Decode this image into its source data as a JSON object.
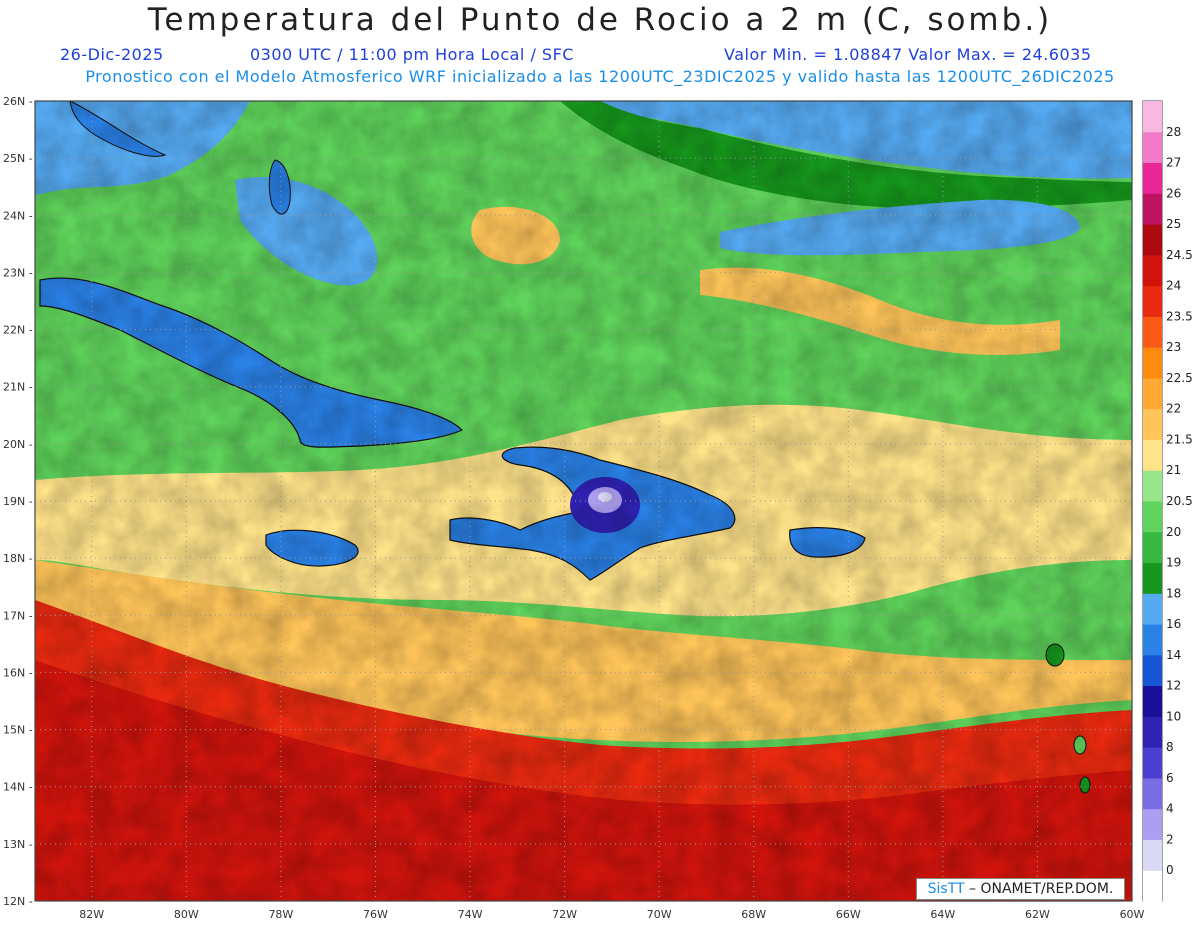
{
  "header": {
    "title": "Temperatura del Punto de Rocio a 2 m (C, somb.)",
    "date": "26-Dic-2025",
    "time": "0300 UTC / 11:00 pm Hora Local / SFC",
    "minmax": "Valor Min. = 1.08847  Valor Max. = 24.6035",
    "model": "Pronostico con el Modelo Atmosferico WRF inicializado a las 1200UTC_23DIC2025 y valido hasta las  1200UTC_26DIC2025"
  },
  "map": {
    "lat_labels": [
      "26N",
      "25N",
      "24N",
      "23N",
      "22N",
      "21N",
      "20N",
      "19N",
      "18N",
      "17N",
      "16N",
      "15N",
      "14N",
      "13N",
      "12N"
    ],
    "lon_labels": [
      "82W",
      "80W",
      "78W",
      "76W",
      "74W",
      "72W",
      "70W",
      "68W",
      "66W",
      "64W",
      "62W",
      "60W"
    ],
    "lat_range": [
      12,
      26
    ],
    "lon_range": [
      -83.2,
      -60
    ],
    "grid": true
  },
  "legend": {
    "labels": [
      "0",
      "2",
      "4",
      "6",
      "8",
      "10",
      "12",
      "14",
      "16",
      "18",
      "19",
      "20",
      "20.5",
      "21",
      "21.5",
      "22",
      "22.5",
      "23",
      "23.5",
      "24",
      "24.5",
      "25",
      "26",
      "27",
      "28"
    ],
    "colors": [
      "#ffffff",
      "#d9d9f5",
      "#ad9ef1",
      "#7b6de4",
      "#4b3fd1",
      "#2f22b2",
      "#1a1098",
      "#1757d6",
      "#2a81e6",
      "#56aaf2",
      "#16961c",
      "#36b740",
      "#5fd35b",
      "#98e68a",
      "#ffe38a",
      "#ffc55a",
      "#ffa834",
      "#ff8a10",
      "#fb5a16",
      "#ea2a10",
      "#d0140c",
      "#ad0a10",
      "#be1262",
      "#e82695",
      "#f27ac8",
      "#f9b8df"
    ]
  },
  "credit": {
    "brand": "SisTT",
    "text": "– ONAMET/REP.DOM."
  }
}
